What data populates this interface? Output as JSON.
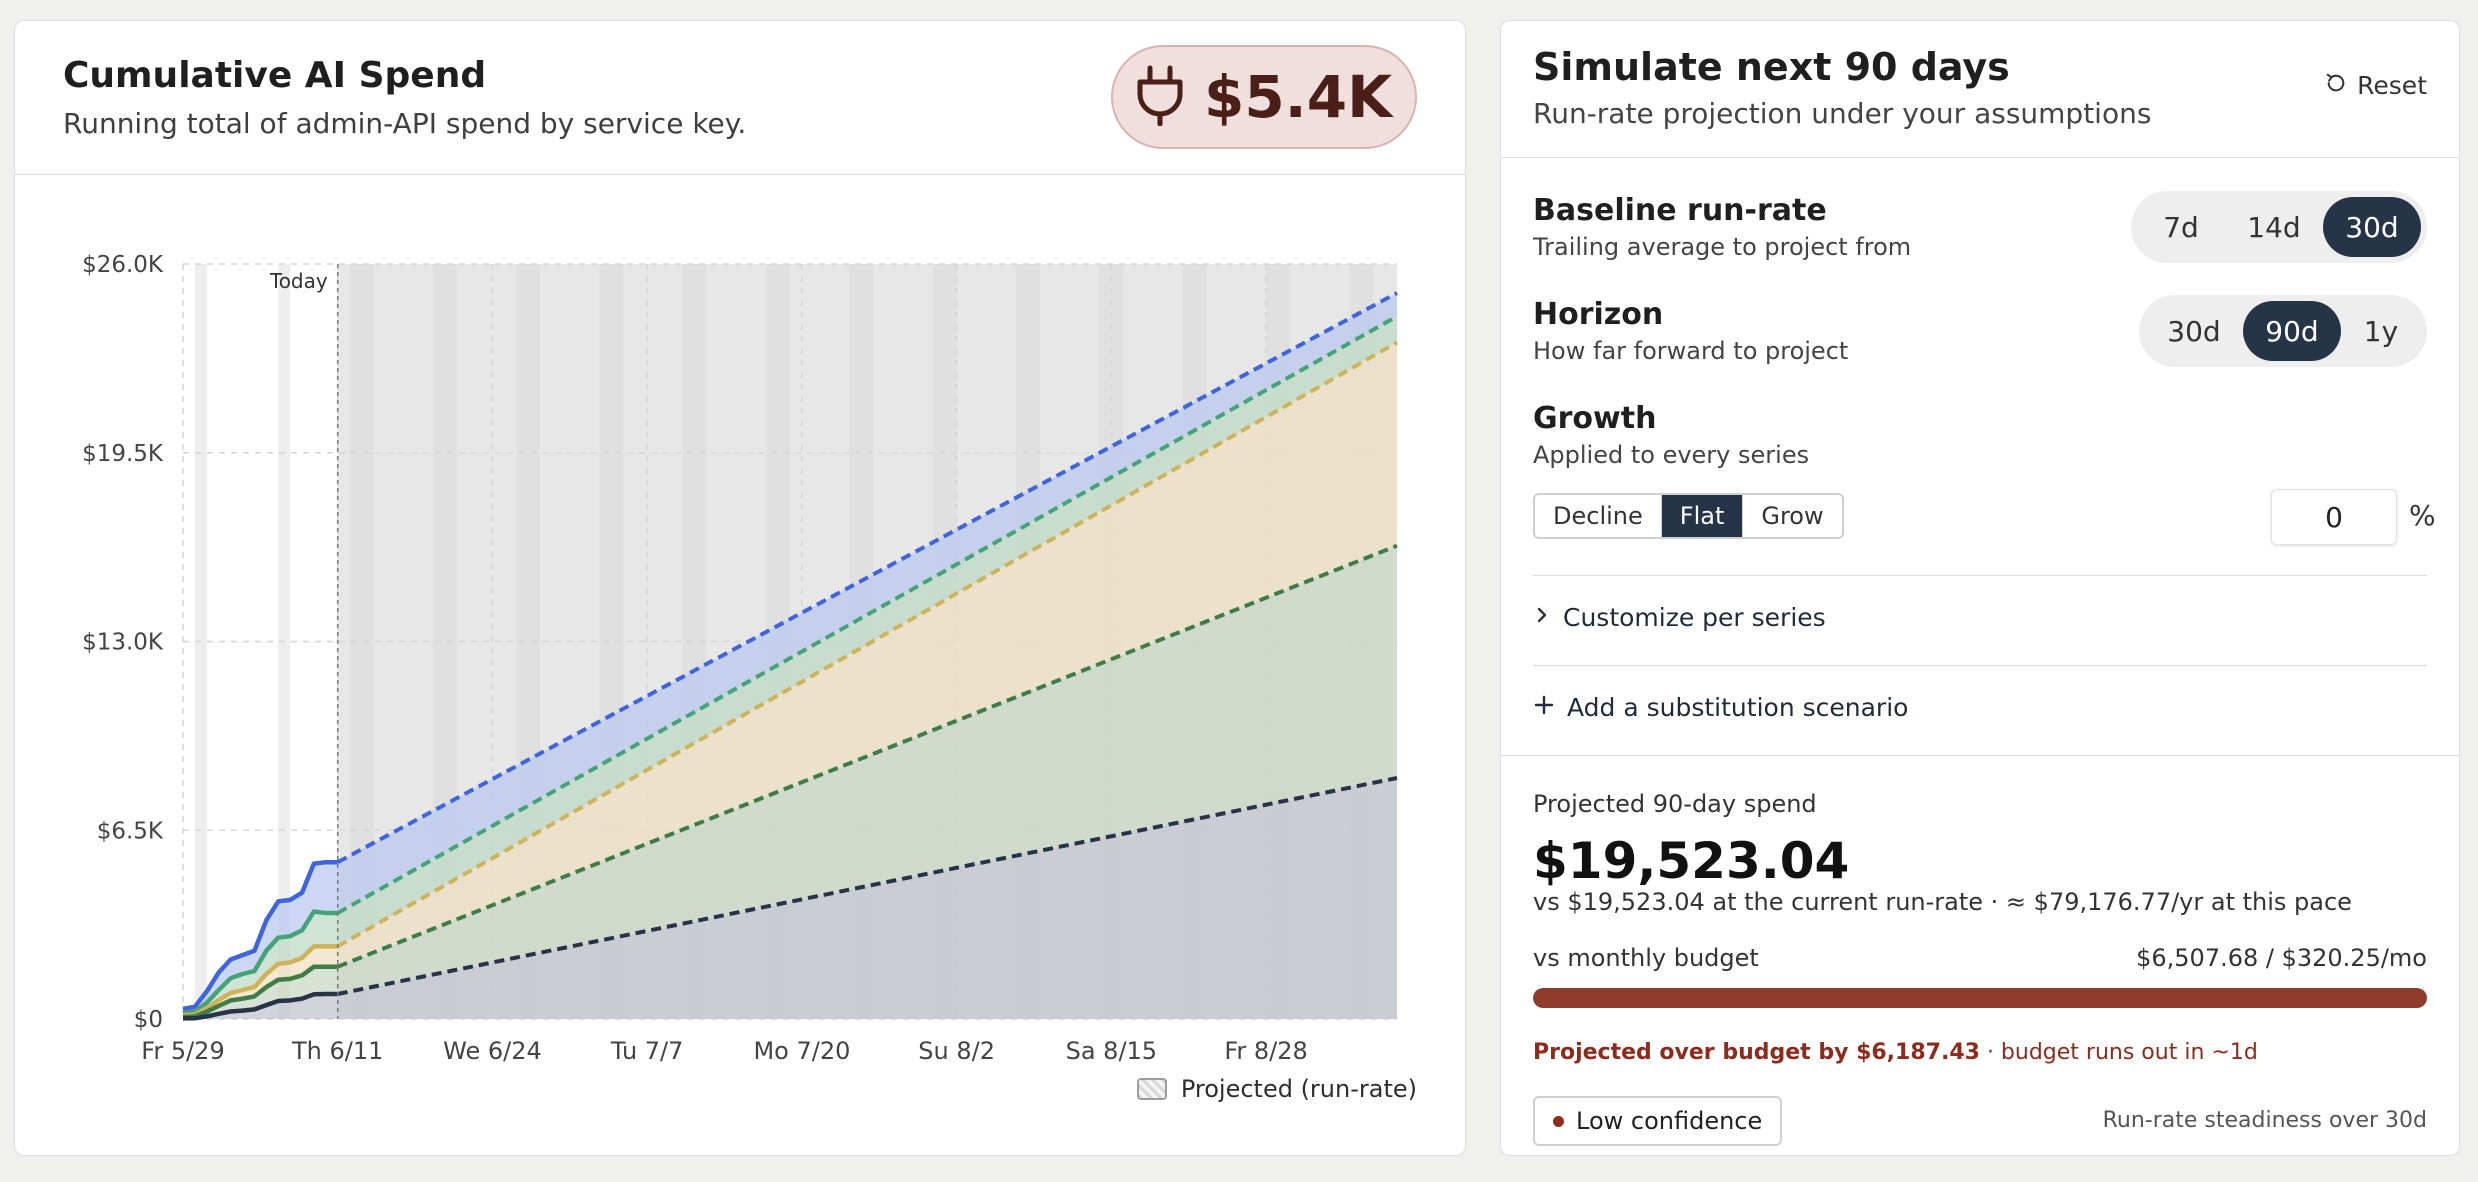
{
  "left": {
    "title": "Cumulative AI Spend",
    "subtitle": "Running total of admin-API spend by service key.",
    "total_value": "$5.4K",
    "total_icon": "plug-icon",
    "legend_label": "Projected (run-rate)"
  },
  "chart_data": {
    "type": "area",
    "stacked": true,
    "today_label": "Today",
    "today_date": "Th 6/11",
    "ylim": [
      0,
      26000
    ],
    "y_ticks": [
      "$0",
      "$6.5K",
      "$13.0K",
      "$19.5K",
      "$26.0K"
    ],
    "x_ticks": [
      "Fr 5/29",
      "Th 6/11",
      "We 6/24",
      "Tu 7/7",
      "Mo 7/20",
      "Su 8/2",
      "Sa 8/15",
      "Fr 8/28"
    ],
    "x_range": [
      "Fr 5/29",
      "Tu 9/8"
    ],
    "grid": true,
    "colors": {
      "series1": "#253447",
      "series2": "#3f7d45",
      "series3": "#cfb35b",
      "series4": "#45a37a",
      "series5": "#3f64db",
      "projection_band": "#cfcfcf"
    },
    "actual": {
      "days": [
        0,
        1,
        2,
        3,
        4,
        5,
        6,
        7,
        8,
        9,
        10,
        11,
        12,
        13
      ],
      "cumulative_totals": [
        [
          350,
          420,
          950,
          1600,
          2050,
          2200,
          2350,
          3400,
          4050,
          4100,
          4350,
          5350,
          5400,
          5400
        ],
        [
          210,
          250,
          560,
          1000,
          1400,
          1550,
          1650,
          2350,
          2800,
          2850,
          3050,
          3700,
          3650,
          3650
        ],
        [
          130,
          150,
          380,
          650,
          900,
          1000,
          1100,
          1550,
          1900,
          1950,
          2100,
          2500,
          2500,
          2500
        ],
        [
          70,
          85,
          250,
          450,
          640,
          700,
          780,
          1100,
          1350,
          1380,
          1500,
          1800,
          1800,
          1800
        ],
        [
          20,
          25,
          90,
          180,
          260,
          290,
          330,
          480,
          620,
          640,
          700,
          850,
          860,
          860
        ]
      ]
    },
    "projection": {
      "start_day": 13,
      "end_day": 102,
      "end_cumulative_totals": [
        25000,
        24200,
        23300,
        16300,
        8300
      ]
    }
  },
  "sim": {
    "title": "Simulate next 90 days",
    "subtitle": "Run-rate projection under your assumptions",
    "reset_label": "Reset",
    "baseline": {
      "label": "Baseline run-rate",
      "desc": "Trailing average to project from",
      "options": [
        "7d",
        "14d",
        "30d"
      ],
      "selected": "30d"
    },
    "horizon": {
      "label": "Horizon",
      "desc": "How far forward to project",
      "options": [
        "30d",
        "90d",
        "1y"
      ],
      "selected": "90d"
    },
    "growth": {
      "label": "Growth",
      "desc": "Applied to every series",
      "options": [
        "Decline",
        "Flat",
        "Grow"
      ],
      "selected": "Flat",
      "percent_value": "0",
      "percent_sign": "%"
    },
    "customize_label": "Customize per series",
    "add_scenario_label": "Add a substitution scenario"
  },
  "summary": {
    "label": "Projected 90-day spend",
    "value": "$19,523.04",
    "compare": "vs $19,523.04 at the current run-rate · ≈ $79,176.77/yr at this pace",
    "budget_label": "vs monthly budget",
    "budget_ratio": "$6,507.68 / $320.25/mo",
    "budget_fill_fraction": 1.0,
    "over_strong": "Projected over budget by $6,187.43",
    "over_rest": " · budget runs out in ~1d",
    "confidence_label": "Low confidence",
    "confidence_note": "Run-rate steadiness over 30d"
  }
}
